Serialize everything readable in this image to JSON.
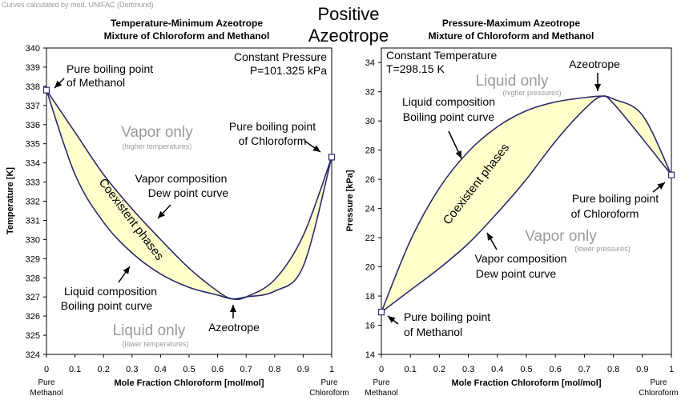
{
  "header": {
    "credit": "Curves calculated by mod. UNIFAC (Dortmund)",
    "main_title_line1": "Positive",
    "main_title_line2": "Azeotrope"
  },
  "colors": {
    "curve": "#2b2b6e",
    "fill": "#ffffcc",
    "label_gray": "#9a9a9a",
    "axis": "#000000"
  },
  "chart_data": [
    {
      "type": "line",
      "title_line1": "Temperature-Minimum Azeotrope",
      "title_line2": "Mixture of Chloroform and Methanol",
      "xlabel": "Mole Fraction Chloroform [mol/mol]",
      "ylabel": "Temperature [K]",
      "xlim": [
        0,
        1
      ],
      "ylim": [
        324,
        340
      ],
      "xticks": [
        0,
        0.1,
        0.2,
        0.3,
        0.4,
        0.5,
        0.6,
        0.7,
        0.8,
        0.9,
        1
      ],
      "yticks": [
        324,
        325,
        326,
        327,
        328,
        329,
        330,
        331,
        332,
        333,
        334,
        335,
        336,
        337,
        338,
        339,
        340
      ],
      "x_end_labels": {
        "left_1": "Pure",
        "left_2": "Methanol",
        "right_1": "Pure",
        "right_2": "Chloroform"
      },
      "series": [
        {
          "role": "dew",
          "x": [
            0,
            0.1,
            0.2,
            0.3,
            0.4,
            0.5,
            0.6,
            0.65,
            0.7,
            0.8,
            0.9,
            1
          ],
          "values": [
            337.8,
            335.6,
            333.4,
            331.6,
            330.0,
            328.5,
            327.3,
            326.9,
            327.0,
            327.9,
            330.2,
            334.3
          ]
        },
        {
          "role": "bubble",
          "x": [
            0,
            0.1,
            0.2,
            0.3,
            0.4,
            0.5,
            0.6,
            0.65,
            0.7,
            0.8,
            0.9,
            1
          ],
          "values": [
            337.8,
            333.4,
            330.9,
            329.3,
            328.2,
            327.5,
            327.1,
            326.9,
            327.0,
            327.3,
            328.6,
            334.3
          ]
        }
      ],
      "endpoints": [
        [
          0,
          337.8
        ],
        [
          1,
          334.3
        ]
      ],
      "annotations": {
        "corner_1": "Constant Pressure",
        "corner_2": "P=101.325 kPa",
        "pure_left_1": "Pure boiling point",
        "pure_left_2": "of Methanol",
        "pure_right_1": "Pure boiling point",
        "pure_right_2": "of Chloroform",
        "region_top": "Vapor only",
        "region_top_sub": "(higher temperatures)",
        "region_bottom": "Liquid only",
        "region_bottom_sub": "(lower temperatures)",
        "dew_1": "Vapor composition",
        "dew_2": "Dew point curve",
        "bubble_1": "Liquid composition",
        "bubble_2": "Boiling point curve",
        "two_phase": "Coexistent phases",
        "azeotrope": "Azeotrope"
      }
    },
    {
      "type": "line",
      "title_line1": "Pressure-Maximum Azeotrope",
      "title_line2": "Mixture of Chloroform and Methanol",
      "xlabel": "Mole Fraction Chloroform [mol/mol]",
      "ylabel": "Pressure [kPa]",
      "xlim": [
        0,
        1
      ],
      "ylim": [
        14,
        35
      ],
      "xticks": [
        0,
        0.1,
        0.2,
        0.3,
        0.4,
        0.5,
        0.6,
        0.7,
        0.8,
        0.9,
        1
      ],
      "yticks": [
        14,
        16,
        18,
        20,
        22,
        24,
        26,
        28,
        30,
        32,
        34
      ],
      "x_end_labels": {
        "left_1": "Pure",
        "left_2": "Methanol",
        "right_1": "Pure",
        "right_2": "Chloroform"
      },
      "series": [
        {
          "role": "bubble",
          "x": [
            0,
            0.1,
            0.2,
            0.3,
            0.4,
            0.5,
            0.6,
            0.7,
            0.76,
            0.8,
            0.9,
            1
          ],
          "values": [
            16.9,
            21.8,
            25.4,
            27.9,
            29.6,
            30.7,
            31.3,
            31.6,
            31.7,
            31.5,
            30.4,
            26.3
          ]
        },
        {
          "role": "dew",
          "x": [
            0,
            0.1,
            0.2,
            0.3,
            0.4,
            0.5,
            0.6,
            0.7,
            0.76,
            0.8,
            0.9,
            1
          ],
          "values": [
            16.9,
            18.4,
            19.9,
            21.6,
            23.7,
            26.0,
            28.6,
            30.8,
            31.7,
            31.2,
            28.8,
            26.3
          ]
        }
      ],
      "endpoints": [
        [
          0,
          16.9
        ],
        [
          1,
          26.3
        ]
      ],
      "annotations": {
        "corner_1": "Constant Temperature",
        "corner_2": "T=298.15 K",
        "pure_left_1": "Pure boiling point",
        "pure_left_2": "of Methanol",
        "pure_right_1": "Pure boiling point",
        "pure_right_2": "of Chloroform",
        "region_top": "Liquid only",
        "region_top_sub": "(higher pressures)",
        "region_bottom": "Vapor only",
        "region_bottom_sub": "(lower pressures)",
        "bubble_1": "Liquid composition",
        "bubble_2": "Boiling point curve",
        "dew_1": "Vapor composition",
        "dew_2": "Dew point curve",
        "two_phase": "Coexistent phases",
        "azeotrope": "Azeotrope"
      }
    }
  ]
}
